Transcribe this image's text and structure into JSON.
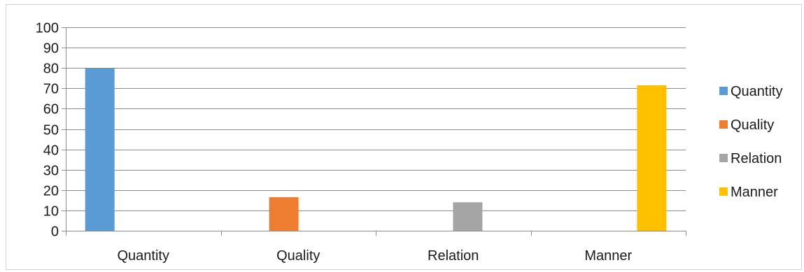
{
  "chart_data": {
    "type": "bar",
    "categories": [
      "Quantity",
      "Quality",
      "Relation",
      "Manner"
    ],
    "series": [
      {
        "name": "Quantity",
        "color": "#5b9bd5",
        "values": [
          80,
          0,
          0,
          0
        ]
      },
      {
        "name": "Quality",
        "color": "#ed7d31",
        "values": [
          0,
          16.5,
          0,
          0
        ]
      },
      {
        "name": "Relation",
        "color": "#a5a5a5",
        "values": [
          0,
          0,
          14,
          0
        ]
      },
      {
        "name": "Manner",
        "color": "#ffc000",
        "values": [
          0,
          0,
          0,
          71.5
        ]
      }
    ],
    "yticks": [
      "0",
      "10",
      "20",
      "30",
      "40",
      "50",
      "60",
      "70",
      "80",
      "90",
      "100"
    ],
    "ylim": [
      0,
      100
    ],
    "grid": true,
    "legend_position": "right"
  }
}
